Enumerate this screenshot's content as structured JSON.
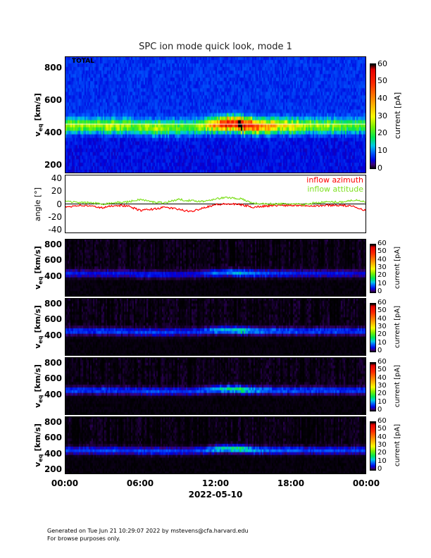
{
  "title": "SPC ion mode quick look, mode 1",
  "footer": {
    "line1": "Generated on Tue Jun 21 10:29:07 2022 by mstevens@cfa.harvard.edu",
    "line2": "For browse purposes only."
  },
  "chart_data": [
    {
      "type": "heatmap",
      "name": "total",
      "panel_label": "TOTAL",
      "ylabel": "v_eq [km/s]",
      "ylabel_main": "v",
      "ylabel_sub": "eq",
      "ylabel_units": "[km/s]",
      "ylim": [
        150,
        870
      ],
      "yticks": [
        "200",
        "400",
        "600",
        "800"
      ],
      "colorbar": {
        "label": "current [pA]",
        "range": [
          0,
          60
        ],
        "ticks": [
          "0",
          "10",
          "20",
          "30",
          "40",
          "50",
          "60"
        ]
      },
      "background_level": 5,
      "band_center_kms_by_hour": [
        440,
        440,
        440,
        440,
        440,
        440,
        430,
        430,
        430,
        430,
        430,
        440,
        450,
        455,
        450,
        440,
        440,
        440,
        440,
        440,
        440,
        440,
        440,
        440
      ],
      "band_peak_pA_by_hour": [
        20,
        20,
        18,
        20,
        22,
        18,
        20,
        22,
        20,
        18,
        17,
        22,
        38,
        45,
        58,
        40,
        32,
        28,
        26,
        22,
        20,
        20,
        18,
        16
      ]
    },
    {
      "type": "line",
      "name": "angles",
      "ylabel": "angle [°]",
      "ylim": [
        -45,
        45
      ],
      "yticks": [
        "-40",
        "-20",
        "0",
        "20",
        "40"
      ],
      "x_hours": [
        0,
        1,
        2,
        3,
        4,
        5,
        6,
        7,
        8,
        9,
        10,
        11,
        12,
        13,
        14,
        15,
        16,
        17,
        18,
        19,
        20,
        21,
        22,
        23,
        24
      ],
      "series": [
        {
          "name": "inflow azimuth",
          "color": "#ff0000",
          "values": [
            -5,
            -2,
            -3,
            -6,
            -2,
            -3,
            -10,
            -8,
            -5,
            -8,
            -12,
            -6,
            -1,
            0,
            -1,
            -5,
            -3,
            -2,
            -2,
            -2,
            -3,
            -2,
            -2,
            -4,
            -10
          ]
        },
        {
          "name": "inflow attitude",
          "color": "#7fe020",
          "values": [
            5,
            2,
            2,
            0,
            2,
            3,
            7,
            3,
            2,
            7,
            5,
            4,
            8,
            10,
            8,
            1,
            0,
            0,
            0,
            -1,
            2,
            3,
            3,
            6,
            3
          ]
        }
      ]
    },
    {
      "type": "heatmap",
      "name": "sector-1",
      "ylabel_main": "v",
      "ylabel_sub": "eq",
      "ylabel_units": "[km/s]",
      "ylim": [
        140,
        870
      ],
      "yticks": [
        "400",
        "600",
        "800"
      ],
      "colorbar": {
        "label": "current [pA]",
        "range": [
          0,
          60
        ],
        "ticks": [
          "0",
          "10",
          "20",
          "30",
          "40",
          "50",
          "60"
        ]
      },
      "band_center_kms_by_hour": [
        430,
        430,
        430,
        430,
        430,
        430,
        420,
        420,
        420,
        420,
        420,
        430,
        440,
        445,
        440,
        430,
        430,
        430,
        430,
        430,
        430,
        430,
        430,
        430
      ],
      "band_peak_pA_by_hour": [
        7,
        6,
        5,
        6,
        6,
        5,
        6,
        7,
        6,
        5,
        5,
        7,
        10,
        11,
        14,
        10,
        8,
        7,
        7,
        6,
        6,
        6,
        6,
        5
      ]
    },
    {
      "type": "heatmap",
      "name": "sector-2",
      "ylabel_main": "v",
      "ylabel_sub": "eq",
      "ylabel_units": "[km/s]",
      "ylim": [
        140,
        870
      ],
      "yticks": [
        "400",
        "600",
        "800"
      ],
      "colorbar": {
        "label": "current [pA]",
        "range": [
          0,
          60
        ],
        "ticks": [
          "0",
          "10",
          "20",
          "30",
          "40",
          "50",
          "60"
        ]
      },
      "band_center_kms_by_hour": [
        450,
        450,
        450,
        450,
        450,
        450,
        440,
        440,
        440,
        440,
        440,
        450,
        460,
        465,
        460,
        450,
        450,
        450,
        450,
        450,
        450,
        450,
        450,
        450
      ],
      "band_peak_pA_by_hour": [
        8,
        8,
        7,
        8,
        8,
        7,
        8,
        8,
        8,
        7,
        7,
        8,
        12,
        14,
        18,
        12,
        10,
        9,
        9,
        8,
        8,
        8,
        8,
        8
      ]
    },
    {
      "type": "heatmap",
      "name": "sector-3",
      "ylabel_main": "v",
      "ylabel_sub": "eq",
      "ylabel_units": "[km/s]",
      "ylim": [
        140,
        870
      ],
      "yticks": [
        "400",
        "600",
        "800"
      ],
      "colorbar": {
        "label": "current [pA]",
        "range": [
          0,
          60
        ],
        "ticks": [
          "0",
          "10",
          "20",
          "30",
          "40",
          "50",
          "60"
        ]
      },
      "band_center_kms_by_hour": [
        450,
        450,
        450,
        450,
        450,
        450,
        440,
        440,
        440,
        440,
        440,
        450,
        460,
        465,
        460,
        450,
        450,
        450,
        450,
        450,
        450,
        450,
        450,
        450
      ],
      "band_peak_pA_by_hour": [
        8,
        8,
        7,
        8,
        8,
        7,
        8,
        9,
        8,
        7,
        7,
        9,
        14,
        16,
        20,
        12,
        10,
        9,
        9,
        8,
        8,
        8,
        8,
        8
      ]
    },
    {
      "type": "heatmap",
      "name": "sector-4",
      "ylabel_main": "v",
      "ylabel_sub": "eq",
      "ylabel_units": "[km/s]",
      "ylim": [
        140,
        870
      ],
      "yticks": [
        "200",
        "400",
        "600",
        "800"
      ],
      "colorbar": {
        "label": "current [pA]",
        "range": [
          0,
          60
        ],
        "ticks": [
          "0",
          "10",
          "20",
          "30",
          "40",
          "50",
          "60"
        ]
      },
      "band_center_kms_by_hour": [
        440,
        440,
        440,
        440,
        440,
        440,
        430,
        430,
        430,
        430,
        430,
        440,
        455,
        460,
        455,
        440,
        440,
        440,
        440,
        440,
        440,
        440,
        440,
        440
      ],
      "band_peak_pA_by_hour": [
        8,
        8,
        7,
        8,
        8,
        7,
        8,
        8,
        8,
        7,
        7,
        8,
        14,
        16,
        20,
        12,
        10,
        9,
        9,
        8,
        8,
        8,
        8,
        8
      ]
    }
  ],
  "xaxis": {
    "ticks": [
      "00:00",
      "06:00",
      "12:00",
      "18:00",
      "00:00"
    ],
    "date_label": "2022-05-10"
  }
}
